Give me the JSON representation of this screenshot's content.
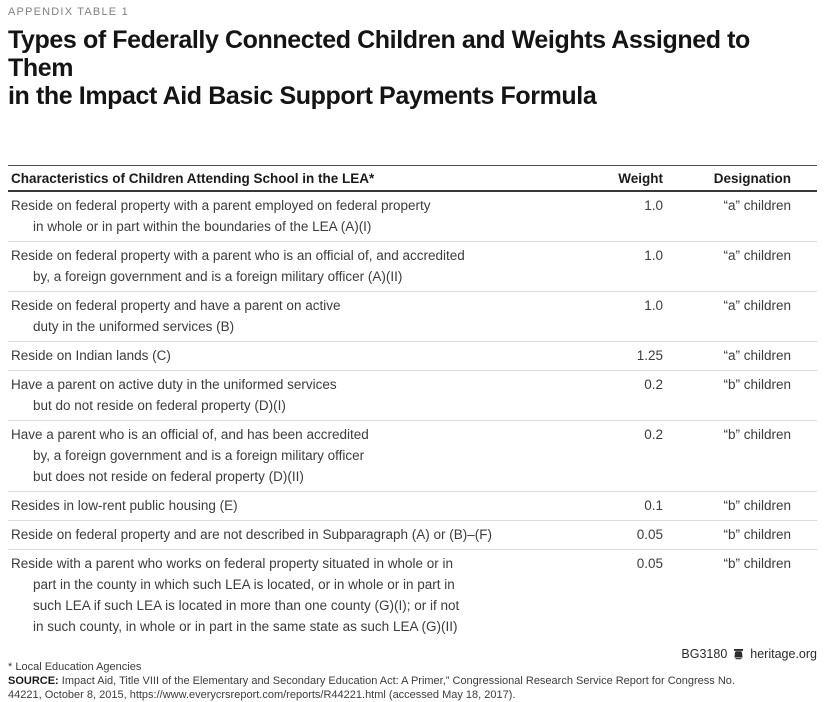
{
  "page": {
    "eyebrow": "APPENDIX TABLE 1",
    "title_line1": "Types of Federally Connected Children and Weights Assigned to Them",
    "title_line2": "in the Impact Aid Basic Support Payments Formula"
  },
  "table": {
    "columns": {
      "characteristics": "Characteristics of Children Attending School in the LEA*",
      "weight": "Weight",
      "designation": "Designation"
    },
    "rows": [
      {
        "lines": [
          "Reside on federal property with a parent employed on federal property",
          "in whole or in part within the boundaries of the LEA (A)(I)"
        ],
        "weight": "1.0",
        "designation": "“a” children"
      },
      {
        "lines": [
          "Reside on federal property with a parent who is an official of, and accredited",
          "by, a foreign government and is a foreign military officer (A)(II)"
        ],
        "weight": "1.0",
        "designation": "“a” children"
      },
      {
        "lines": [
          "Reside on federal property and have a parent on active",
          "duty in the uniformed services (B)"
        ],
        "weight": "1.0",
        "designation": "“a” children"
      },
      {
        "lines": [
          "Reside on Indian lands (C)"
        ],
        "weight": "1.25",
        "designation": "“a” children"
      },
      {
        "lines": [
          "Have a parent on active duty in the uniformed services",
          "but do not reside on federal property (D)(I)"
        ],
        "weight": "0.2",
        "designation": "“b” children"
      },
      {
        "lines": [
          "Have a parent who is an official of, and has been accredited",
          "by, a foreign government and is a foreign military officer",
          "but does not reside on federal property (D)(II)"
        ],
        "weight": "0.2",
        "designation": "“b” children"
      },
      {
        "lines": [
          "Resides in low-rent public housing (E)"
        ],
        "weight": "0.1",
        "designation": "“b” children"
      },
      {
        "lines": [
          "Reside on federal property and are not described in Subparagraph (A) or (B)–(F)"
        ],
        "weight": "0.05",
        "designation": "“b” children"
      },
      {
        "lines": [
          "Reside with a parent who works on federal property situated in whole or in",
          "part in the county in which such LEA is located, or in whole or in part in",
          "such LEA if such LEA is located in more than one county (G)(I); or if not",
          "in such county, in whole or in part in the same state as such LEA (G)(II)"
        ],
        "weight": "0.05",
        "designation": "“b” children"
      }
    ]
  },
  "footnotes": {
    "asterisk_note": "* Local Education Agencies",
    "source_label": "SOURCE:",
    "source_line1": "Impact Aid, Title VIII of the Elementary and Secondary Education Act: A Primer,” Congressional Research Service Report for Congress No.",
    "source_line2": "44221, October 8, 2015, https://www.everycrsreport.com/reports/R44221.html (accessed May 18, 2017)."
  },
  "credit": {
    "report_id": "BG3180",
    "icon": "liberty-bell-icon",
    "site": "heritage.org"
  },
  "colors": {
    "title": "#141414",
    "eyebrow_gray": "#818181",
    "body_text": "#3c3c3c",
    "rule_dark": "#383838",
    "rule_light": "#dcdcdc"
  }
}
